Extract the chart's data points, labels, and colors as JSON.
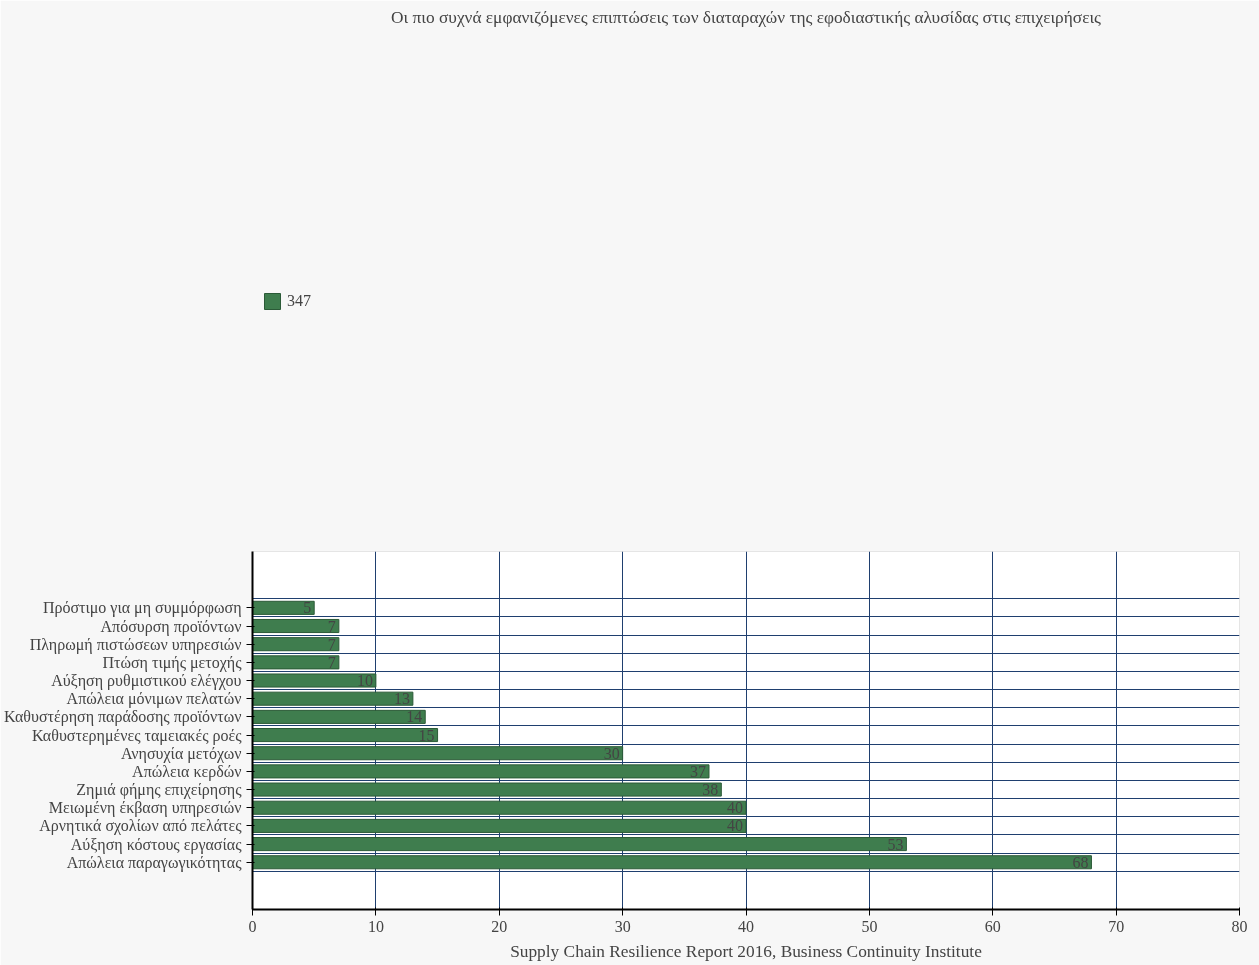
{
  "chart_data": {
    "type": "bar",
    "orientation": "horizontal",
    "title": "Οι πιο συχνά εμφανιζόμενες επιπτώσεις των διαταραχών της εφοδιαστικής αλυσίδας στις επιχειρήσεις",
    "categories": [
      "Πρόστιμο για μη συμμόρφωση",
      "Απόσυρση προϊόντων",
      "Πληρωμή πιστώσεων υπηρεσιών",
      "Πτώση τιμής μετοχής",
      "Αύξηση ρυθμιστικού ελέγχου",
      "Απώλεια μόνιμων πελατών",
      "Καθυστέρηση παράδοσης προϊόντων",
      "Καθυστερημένες ταμειακές ροές",
      "Ανησυχία μετόχων",
      "Απώλεια κερδών",
      "Ζημιά φήμης επιχείρησης",
      "Μειωμένη έκβαση υπηρεσιών",
      "Αρνητικά σχολίων από πελάτες",
      "Αύξηση κόστους εργασίας",
      "Απώλεια παραγωγικότητας"
    ],
    "series": [
      {
        "name": "347",
        "color": "#3f7d4e",
        "values": [
          5,
          7,
          7,
          7,
          10,
          13,
          14,
          15,
          30,
          37,
          38,
          40,
          40,
          53,
          68
        ]
      }
    ],
    "xlim": [
      0,
      80
    ],
    "xticks": [
      0,
      10,
      20,
      30,
      40,
      50,
      60,
      70,
      80
    ],
    "grid": true,
    "legend": "top left",
    "data_labels": true,
    "annotations": [
      "Supply Chain Resilience Report 2016, Business Continuity Institute"
    ]
  }
}
